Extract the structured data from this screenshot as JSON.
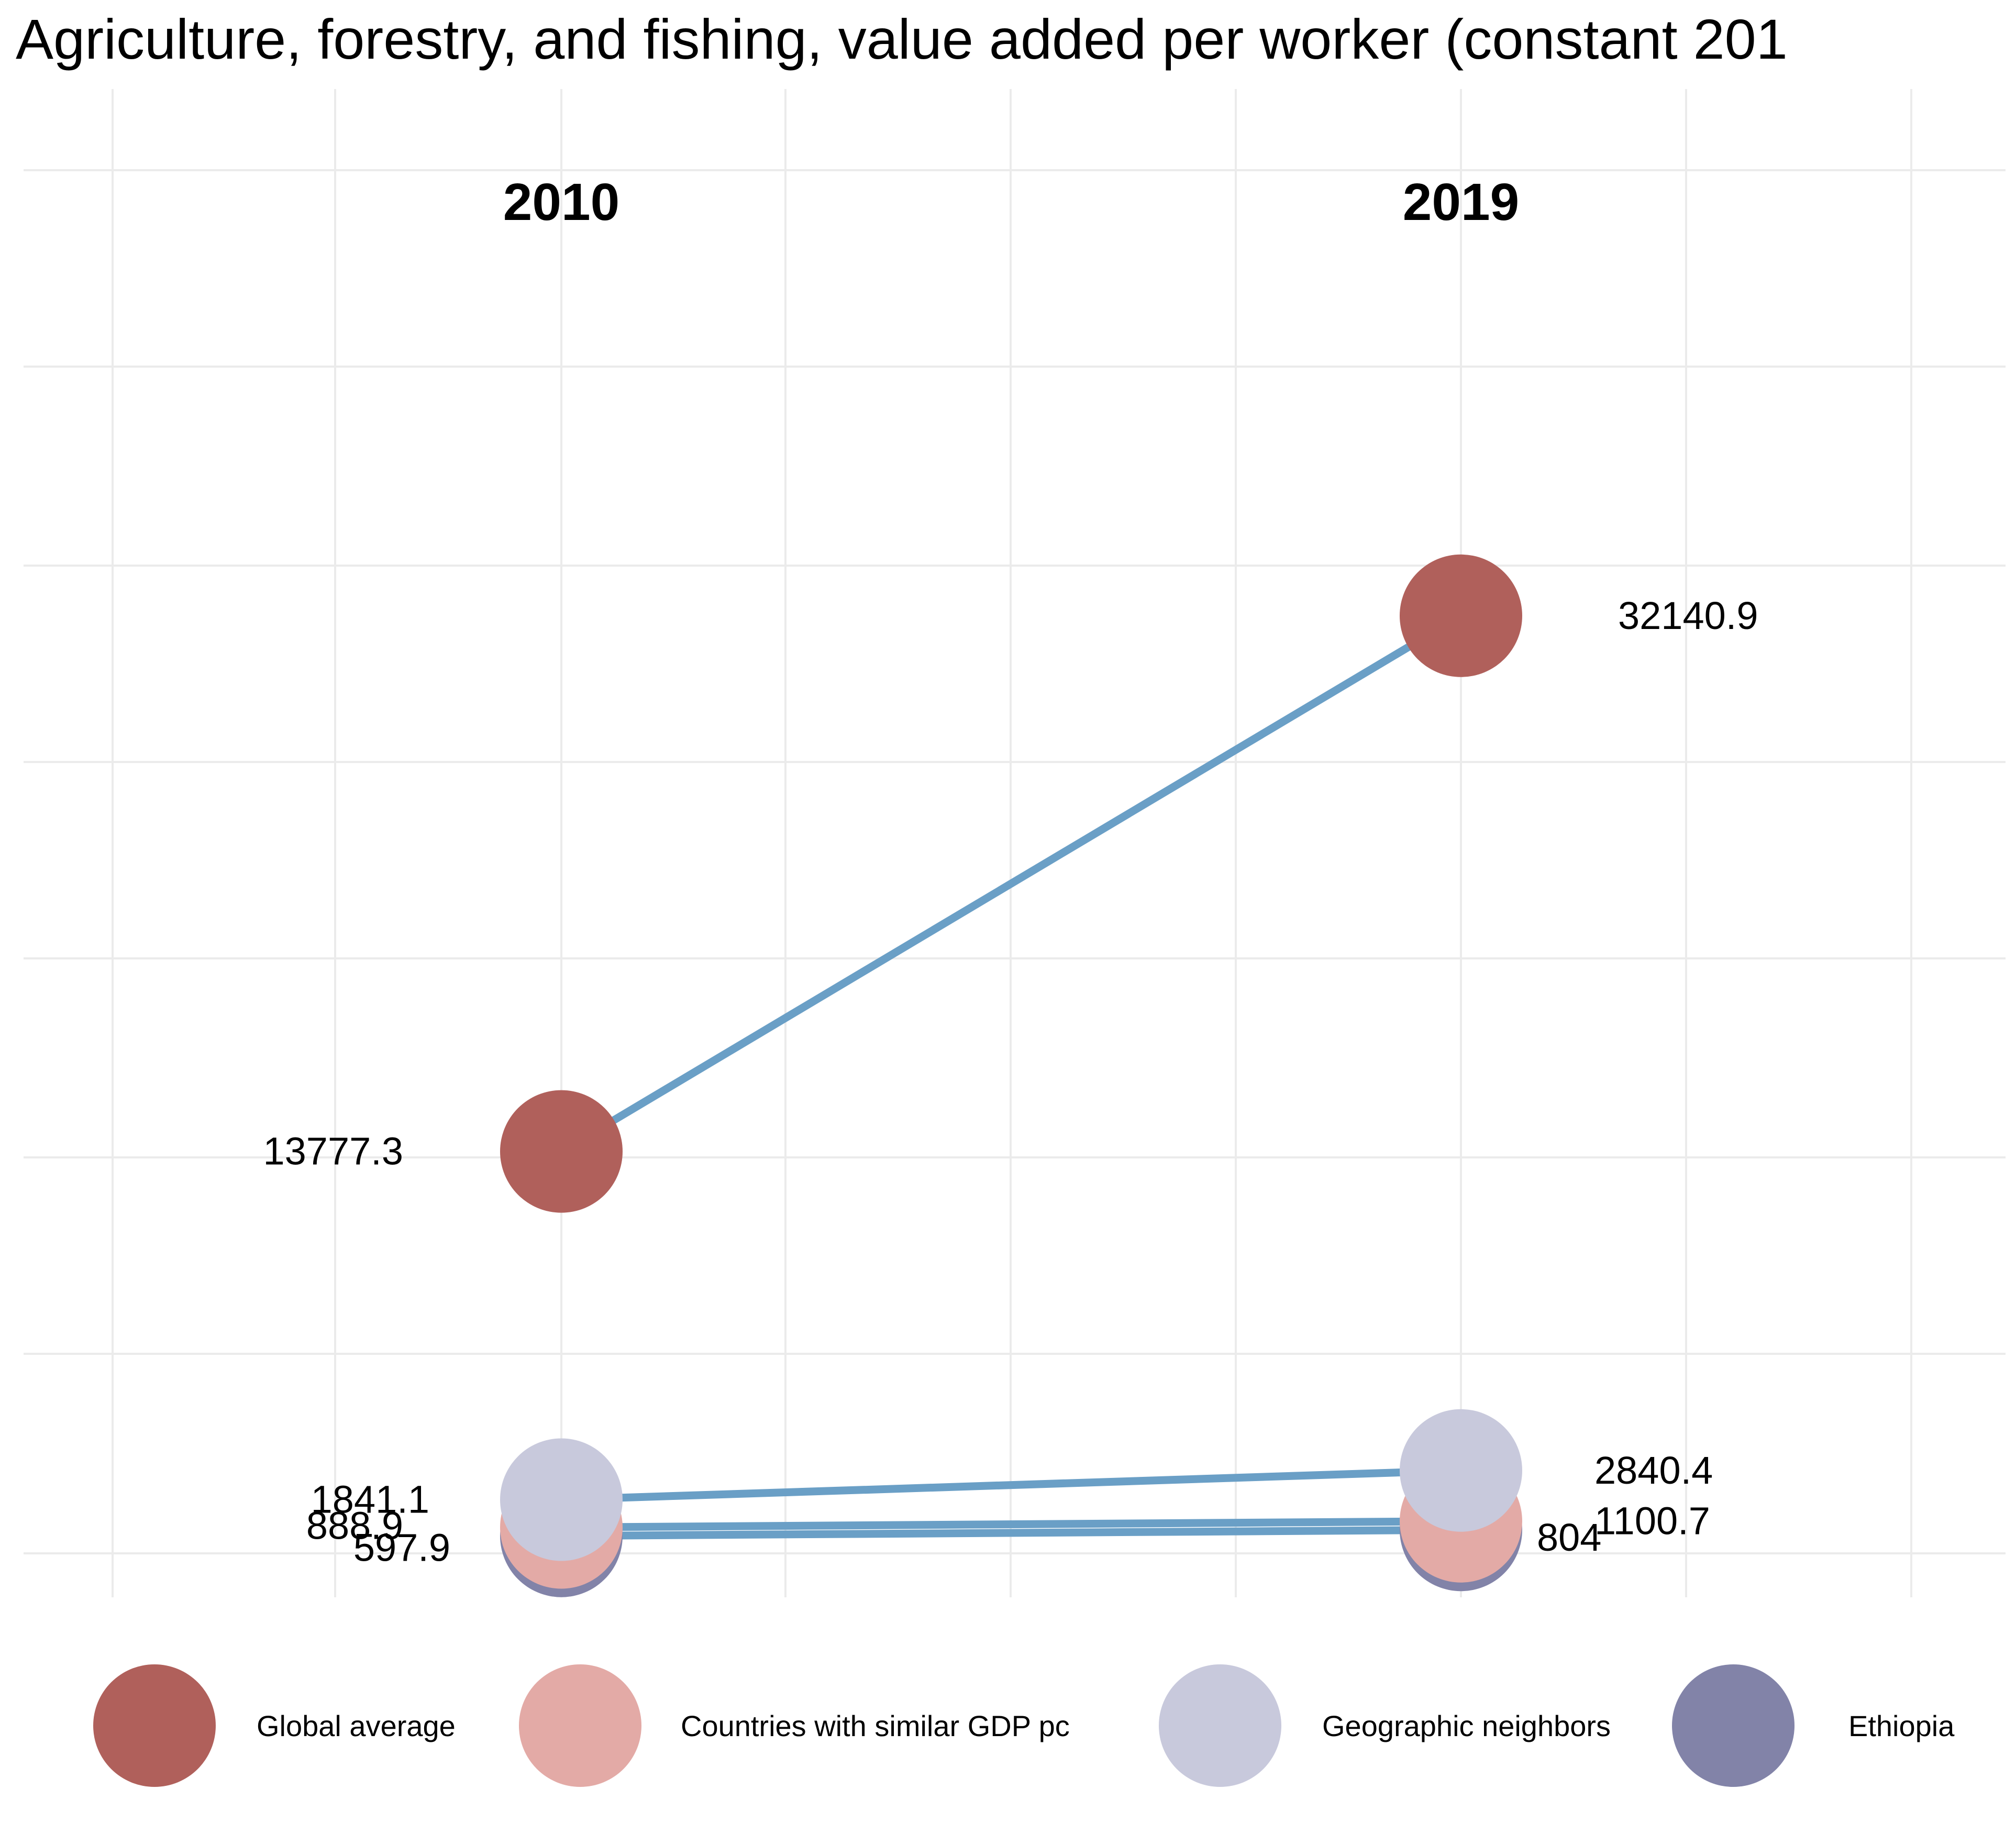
{
  "chart_data": {
    "type": "line",
    "title": "Agriculture, forestry, and fishing, value added per worker (constant 201",
    "x": [
      "2010",
      "2019"
    ],
    "series": [
      {
        "name": "Global average",
        "color": "#b0605b",
        "values": [
          13777.3,
          32140.9
        ],
        "labels": [
          "13777.3",
          "32140.9"
        ]
      },
      {
        "name": "Countries with similar GDP pc",
        "color": "#e3aaa6",
        "values": [
          888.9,
          1100.7
        ],
        "labels": [
          "888.9",
          "1100.7"
        ]
      },
      {
        "name": "Geographic neighbors",
        "color": "#c8c9dc",
        "values": [
          1841.1,
          2840.4
        ],
        "labels": [
          "1841.1",
          "2840.4"
        ]
      },
      {
        "name": "Ethiopia",
        "color": "#8283a8",
        "values": [
          597.9,
          804
        ],
        "labels": [
          "597.9",
          "804"
        ]
      }
    ],
    "line_color": "#6a9fc6",
    "ylim": [
      0,
      35000
    ],
    "grid": true,
    "legend": "bottom"
  }
}
